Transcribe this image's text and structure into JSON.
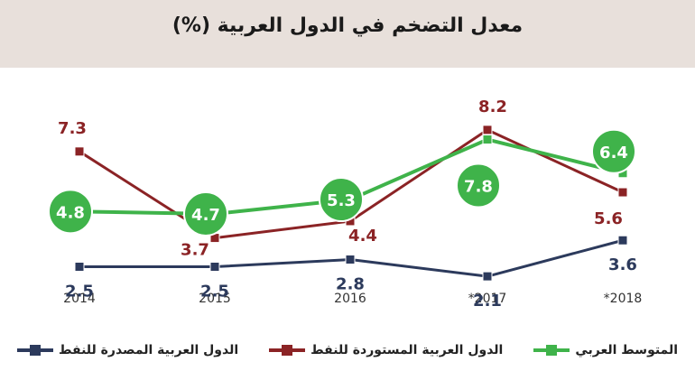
{
  "title": "معدل التضخم في الدول العربية  (%)",
  "chart_data": {
    "type": "line",
    "categories": [
      "2014",
      "2015",
      "2016",
      "*2017",
      "*2018"
    ],
    "ylim": [
      0,
      10
    ],
    "grid": false,
    "legend_position": "bottom",
    "series": [
      {
        "name": "المتوسط العربي",
        "values": [
          4.8,
          4.7,
          5.3,
          7.8,
          6.4
        ],
        "color": "#3fb34a",
        "label_style": "bubble"
      },
      {
        "name": "الدول العربية المستوردة للنفط",
        "values": [
          7.3,
          3.7,
          4.4,
          8.2,
          5.6
        ],
        "color": "#8b2325",
        "label_style": "text"
      },
      {
        "name": "الدول العربية المصدرة للنفط",
        "values": [
          2.5,
          2.5,
          2.8,
          2.1,
          3.6
        ],
        "color": "#2c3a5c",
        "label_style": "text"
      }
    ]
  },
  "colors": {
    "header_bg": "#e8e0db"
  }
}
